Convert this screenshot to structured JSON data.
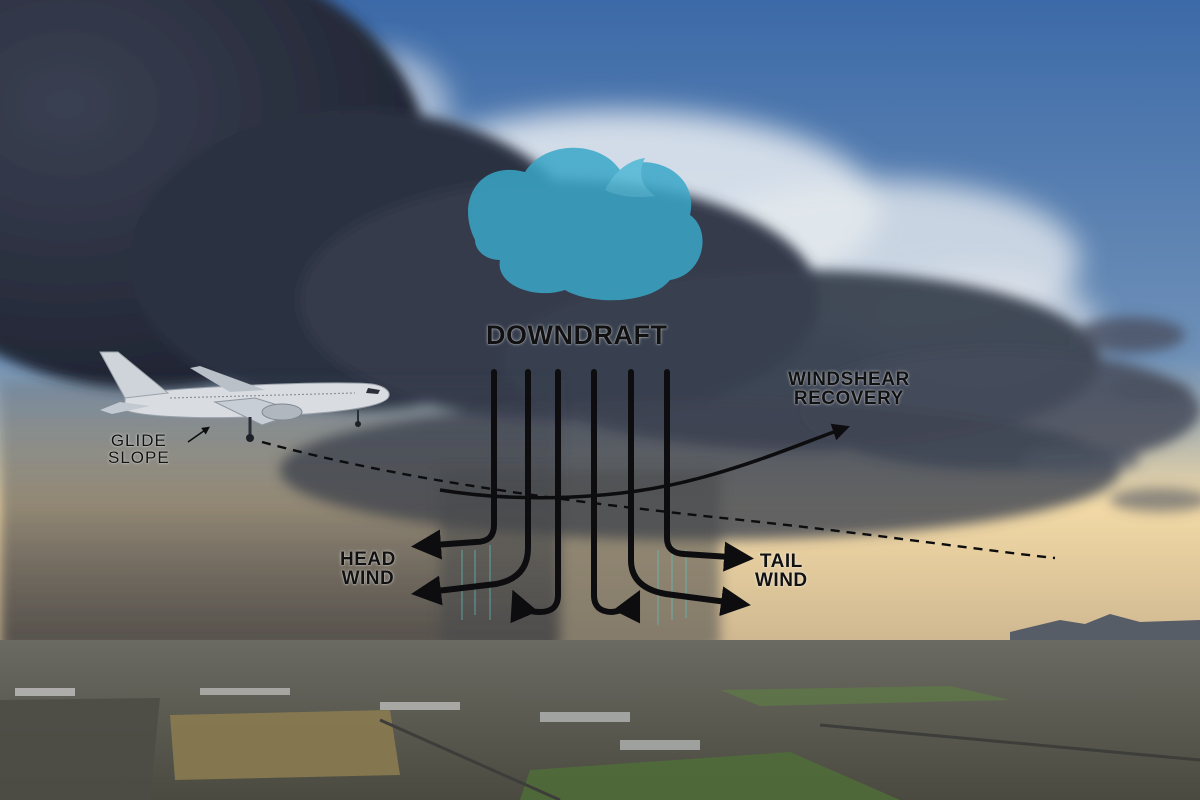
{
  "labels": {
    "downdraft": "DOWNDRAFT",
    "windshear_recovery": [
      "WINDSHEAR",
      "RECOVERY"
    ],
    "glide_slope": [
      "GLIDE",
      "SLOPE"
    ],
    "head_wind": [
      "HEAD",
      "WIND"
    ],
    "tail_wind": [
      "TAIL",
      "WIND"
    ]
  },
  "colors": {
    "sky_top": "#3c6aa8",
    "sky_horizon": "#f2d9a6",
    "storm_cloud": "#2b3142",
    "cloud_highlight": "#e9edf2",
    "watermark_cloud": "#3aa7c8",
    "arrow": "#0d0d0f",
    "label_text": "#111111",
    "ground": "#5b5a4e",
    "field_green": "#4f6b3a",
    "field_tan": "#8a7a4f",
    "aircraft": "#d9dde2"
  },
  "icons": {
    "aircraft": "aircraft-icon",
    "logo": "cloud-logo-icon"
  }
}
